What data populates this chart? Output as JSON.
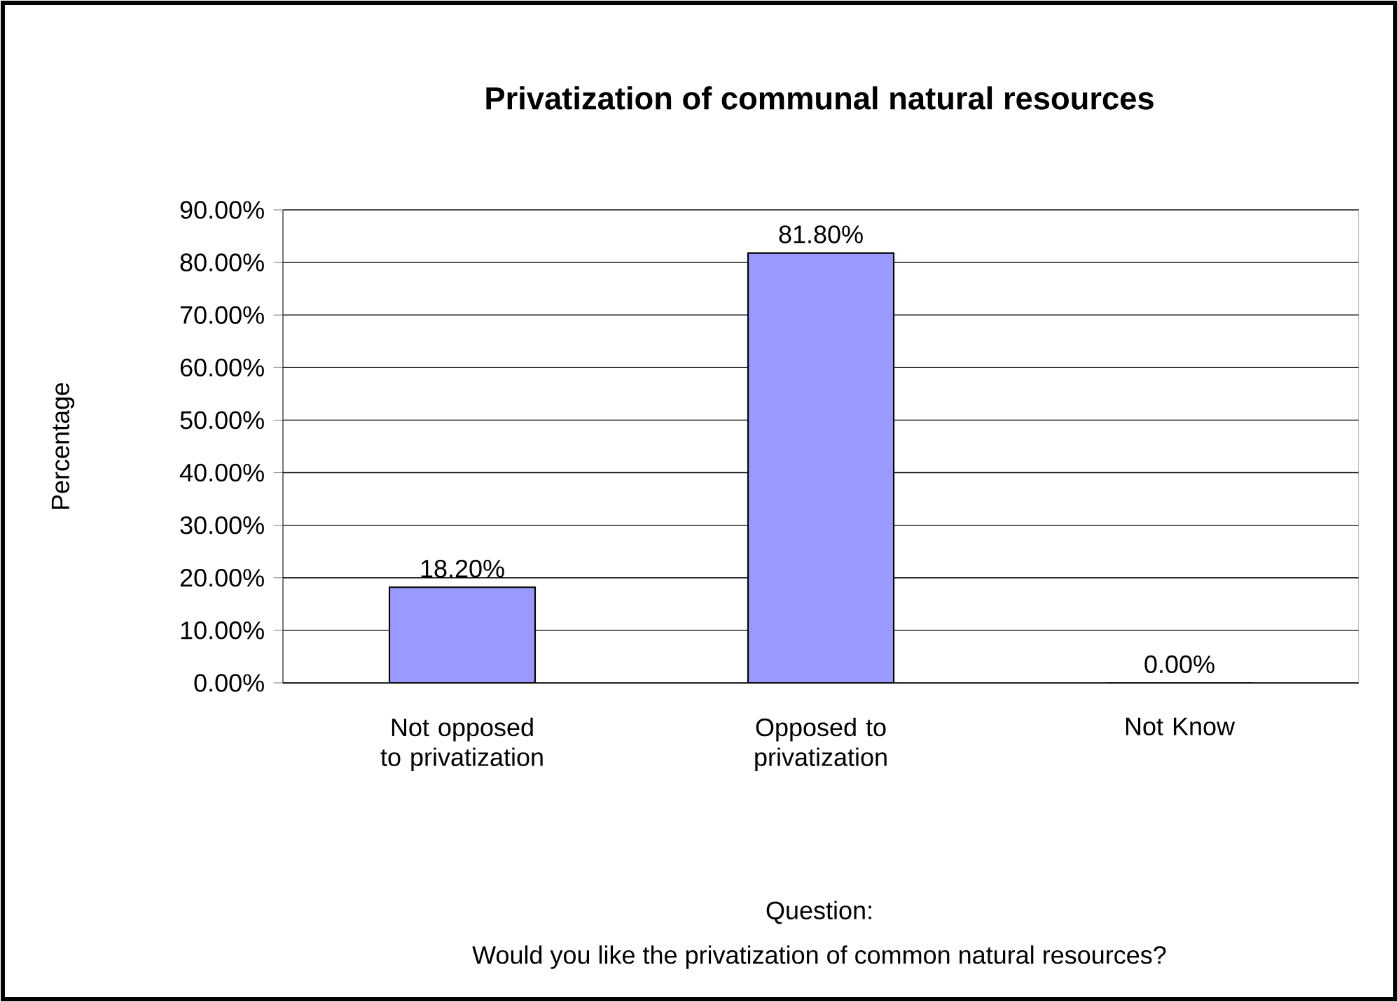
{
  "chart_data": {
    "type": "bar",
    "title": "Privatization of communal natural resources",
    "ylabel": "Percentage",
    "annotations": [
      "Question:",
      "Would you like the privatization of common natural resources?"
    ],
    "categories": [
      "Not opposed to privatization",
      "Opposed to privatization",
      "Not Know"
    ],
    "values": [
      18.2,
      81.8,
      0
    ],
    "color": "#9999ff",
    "value_labels": [
      "18.20%",
      "81.80%",
      "0.00%"
    ],
    "ylim": [
      0,
      90
    ],
    "yticks": [
      {
        "value": 0,
        "label": "0.00%"
      },
      {
        "value": 10,
        "label": "10.00%"
      },
      {
        "value": 20,
        "label": "20.00%"
      },
      {
        "value": 30,
        "label": "30.00%"
      },
      {
        "value": 40,
        "label": "40.00%"
      },
      {
        "value": 50,
        "label": "50.00%"
      },
      {
        "value": 60,
        "label": "60.00%"
      },
      {
        "value": 70,
        "label": "70.00%"
      },
      {
        "value": 80,
        "label": "80.00%"
      },
      {
        "value": 90,
        "label": "90.00%"
      }
    ],
    "grid": "y"
  }
}
